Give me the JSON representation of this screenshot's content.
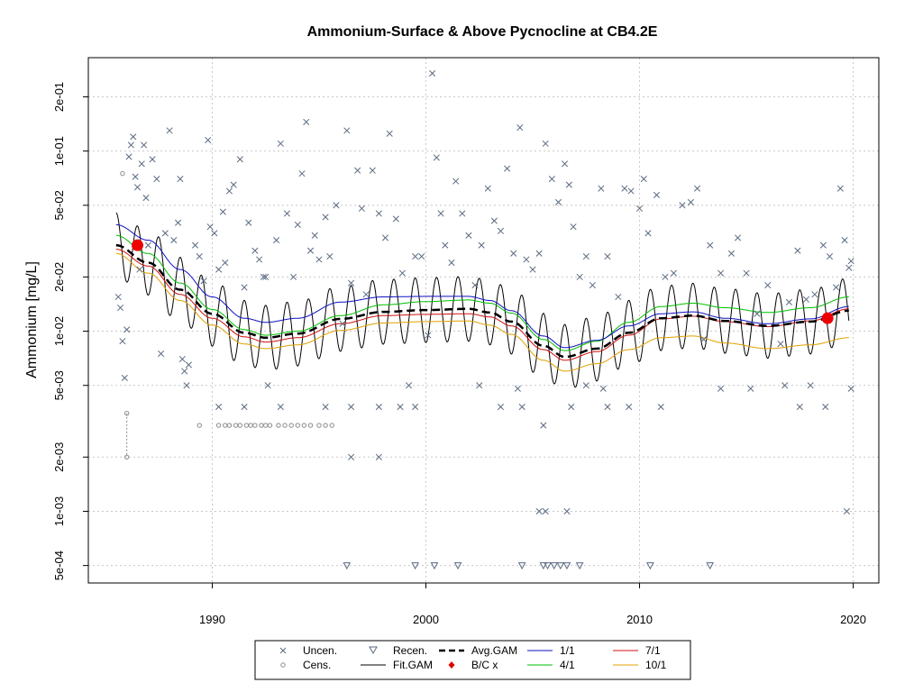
{
  "chart_data": {
    "type": "scatter",
    "title": "Ammonium-Surface & Above Pycnocline at CB4.2E",
    "xlabel": "",
    "ylabel": "Ammonium [mg/L]",
    "xlim": [
      1984.2,
      2021.2
    ],
    "ylim": [
      0.0004,
      0.33
    ],
    "log_y": true,
    "grid": true,
    "x_ticks": [
      1990,
      2000,
      2010,
      2020
    ],
    "x_tick_labels": [
      "1990",
      "2000",
      "2010",
      "2020"
    ],
    "y_ticks": [
      0.0005,
      0.001,
      0.002,
      0.005,
      0.01,
      0.02,
      0.05,
      0.1,
      0.2
    ],
    "y_tick_labels": [
      "5e-04",
      "1e-03",
      "2e-03",
      "5e-03",
      "1e-02",
      "2e-02",
      "5e-02",
      "1e-01",
      "2e-01"
    ],
    "legend": {
      "placement": "bottom",
      "entries": [
        {
          "label": "Uncen.",
          "symbol": "x",
          "color": "#5a6a80"
        },
        {
          "label": "Cens.",
          "symbol": "circle",
          "color": "#8a8a8a"
        },
        {
          "label": "Recen.",
          "symbol": "triangle-down",
          "color": "#5a6a80"
        },
        {
          "label": "Fit.GAM",
          "symbol": "line",
          "color": "#000000"
        },
        {
          "label": "Avg.GAM",
          "symbol": "dash",
          "color": "#000000"
        },
        {
          "label": "B/C x",
          "symbol": "dot",
          "color": "#e00000"
        },
        {
          "label": "1/1",
          "symbol": "line",
          "color": "#1010c0"
        },
        {
          "label": "4/1",
          "symbol": "line",
          "color": "#00c000"
        },
        {
          "label": "7/1",
          "symbol": "line",
          "color": "#d01010"
        },
        {
          "label": "10/1",
          "symbol": "line",
          "color": "#e0a000"
        }
      ]
    },
    "colors": {
      "uncen": "#5a6a80",
      "cens": "#8a8a8a",
      "fit": "#000000",
      "avg": "#000000",
      "bc": "#ee0000",
      "d11": "#1010c0",
      "d41": "#00c000",
      "d71": "#d01010",
      "d101": "#e0a000",
      "grid": "#c8c8c8"
    },
    "series": [
      {
        "name": "Avg.GAM",
        "x": [
          1985.5,
          1987,
          1988.5,
          1990,
          1991.5,
          1992.5,
          1994,
          1996,
          1998,
          2000,
          2002,
          2003,
          2004,
          2005.5,
          2006.5,
          2008,
          2009.5,
          2011,
          2012.5,
          2014,
          2016,
          2018,
          2019.8
        ],
        "y": [
          0.03,
          0.024,
          0.017,
          0.0125,
          0.0098,
          0.0092,
          0.0097,
          0.0117,
          0.0128,
          0.0131,
          0.0133,
          0.0127,
          0.0113,
          0.0083,
          0.0072,
          0.008,
          0.0098,
          0.0118,
          0.0122,
          0.0114,
          0.0107,
          0.0113,
          0.013
        ]
      },
      {
        "name": "1/1",
        "x": [
          1985.5,
          1987,
          1988.5,
          1990,
          1991.5,
          1992.5,
          1994,
          1996,
          1998,
          2000,
          2002,
          2003,
          2004,
          2005.5,
          2006.5,
          2008,
          2009.5,
          2011,
          2012.5,
          2014,
          2016,
          2018,
          2019.8
        ],
        "y": [
          0.039,
          0.032,
          0.022,
          0.0155,
          0.0118,
          0.0112,
          0.0118,
          0.0145,
          0.0155,
          0.0156,
          0.0156,
          0.0148,
          0.013,
          0.0094,
          0.0081,
          0.0089,
          0.0107,
          0.0125,
          0.0128,
          0.0118,
          0.011,
          0.0117,
          0.0137
        ]
      },
      {
        "name": "4/1",
        "x": [
          1985.5,
          1987,
          1988.5,
          1990,
          1991.5,
          1992.5,
          1994,
          1996,
          1998,
          2000,
          2002,
          2003,
          2004,
          2005.5,
          2006.5,
          2008,
          2009.5,
          2011,
          2012.5,
          2014,
          2016,
          2018,
          2019.8
        ],
        "y": [
          0.034,
          0.027,
          0.0185,
          0.0132,
          0.0102,
          0.0095,
          0.01,
          0.0122,
          0.014,
          0.0146,
          0.0149,
          0.0143,
          0.0126,
          0.009,
          0.0078,
          0.0088,
          0.0112,
          0.0137,
          0.0143,
          0.0135,
          0.0127,
          0.0135,
          0.0155
        ]
      },
      {
        "name": "7/1",
        "x": [
          1985.5,
          1987,
          1988.5,
          1990,
          1991.5,
          1992.5,
          1994,
          1996,
          1998,
          2000,
          2002,
          2003,
          2004,
          2005.5,
          2006.5,
          2008,
          2009.5,
          2011,
          2012.5,
          2014,
          2016,
          2018,
          2019.8
        ],
        "y": [
          0.0285,
          0.023,
          0.016,
          0.0118,
          0.0093,
          0.0087,
          0.0092,
          0.011,
          0.0122,
          0.0124,
          0.0125,
          0.012,
          0.0107,
          0.0079,
          0.0069,
          0.0077,
          0.0095,
          0.0117,
          0.0121,
          0.0113,
          0.0106,
          0.0114,
          0.0133
        ]
      },
      {
        "name": "10/1",
        "x": [
          1985.5,
          1987,
          1988.5,
          1990,
          1991.5,
          1992.5,
          1994,
          1996,
          1998,
          2000,
          2002,
          2003,
          2004,
          2005.5,
          2006.5,
          2008,
          2009.5,
          2011,
          2012.5,
          2014,
          2016,
          2018,
          2019.8
        ],
        "y": [
          0.027,
          0.021,
          0.0148,
          0.0108,
          0.0085,
          0.008,
          0.0084,
          0.0101,
          0.0111,
          0.0113,
          0.0114,
          0.0108,
          0.0096,
          0.0069,
          0.006,
          0.0066,
          0.0079,
          0.0092,
          0.0094,
          0.0086,
          0.008,
          0.0084,
          0.0092
        ]
      }
    ],
    "bc_points": [
      {
        "x": 1986.5,
        "y": 0.03
      },
      {
        "x": 2018.8,
        "y": 0.0118
      }
    ],
    "uncensored_points": [
      [
        1985.6,
        0.0155
      ],
      [
        1985.7,
        0.0135
      ],
      [
        1985.8,
        0.0088
      ],
      [
        1985.9,
        0.0055
      ],
      [
        1986.0,
        0.0102
      ],
      [
        1986.1,
        0.093
      ],
      [
        1986.2,
        0.108
      ],
      [
        1986.3,
        0.12
      ],
      [
        1986.4,
        0.072
      ],
      [
        1986.5,
        0.063
      ],
      [
        1986.6,
        0.022
      ],
      [
        1986.7,
        0.085
      ],
      [
        1986.8,
        0.108
      ],
      [
        1986.9,
        0.055
      ],
      [
        1987.0,
        0.03
      ],
      [
        1987.2,
        0.09
      ],
      [
        1987.4,
        0.07
      ],
      [
        1987.6,
        0.0075
      ],
      [
        1987.8,
        0.035
      ],
      [
        1988.0,
        0.13
      ],
      [
        1988.2,
        0.032
      ],
      [
        1988.4,
        0.04
      ],
      [
        1988.5,
        0.07
      ],
      [
        1988.6,
        0.007
      ],
      [
        1988.7,
        0.006
      ],
      [
        1988.8,
        0.005
      ],
      [
        1988.9,
        0.0065
      ],
      [
        1989.2,
        0.03
      ],
      [
        1989.4,
        0.026
      ],
      [
        1989.6,
        0.019
      ],
      [
        1989.8,
        0.115
      ],
      [
        1989.9,
        0.038
      ],
      [
        1990.1,
        0.035
      ],
      [
        1990.3,
        0.022
      ],
      [
        1990.5,
        0.046
      ],
      [
        1990.6,
        0.024
      ],
      [
        1990.8,
        0.06
      ],
      [
        1991.0,
        0.065
      ],
      [
        1991.3,
        0.09
      ],
      [
        1991.5,
        0.0175
      ],
      [
        1991.7,
        0.04
      ],
      [
        1992.0,
        0.028
      ],
      [
        1992.2,
        0.025
      ],
      [
        1992.4,
        0.02
      ],
      [
        1992.5,
        0.02
      ],
      [
        1992.6,
        0.005
      ],
      [
        1993.0,
        0.032
      ],
      [
        1993.2,
        0.11
      ],
      [
        1993.5,
        0.045
      ],
      [
        1993.8,
        0.02
      ],
      [
        1994.0,
        0.039
      ],
      [
        1994.2,
        0.075
      ],
      [
        1994.4,
        0.145
      ],
      [
        1994.6,
        0.028
      ],
      [
        1994.8,
        0.034
      ],
      [
        1995.0,
        0.025
      ],
      [
        1995.3,
        0.043
      ],
      [
        1995.5,
        0.026
      ],
      [
        1995.8,
        0.05
      ],
      [
        1996.1,
        0.011
      ],
      [
        1996.3,
        0.13
      ],
      [
        1996.5,
        0.0185
      ],
      [
        1996.8,
        0.078
      ],
      [
        1997.0,
        0.048
      ],
      [
        1997.2,
        0.016
      ],
      [
        1997.5,
        0.078
      ],
      [
        1997.8,
        0.045
      ],
      [
        1998.1,
        0.033
      ],
      [
        1998.3,
        0.125
      ],
      [
        1998.6,
        0.042
      ],
      [
        1998.9,
        0.021
      ],
      [
        1999.2,
        0.005
      ],
      [
        1999.5,
        0.026
      ],
      [
        1999.8,
        0.026
      ],
      [
        2000.1,
        0.0095
      ],
      [
        2000.3,
        0.27
      ],
      [
        2000.5,
        0.092
      ],
      [
        2000.7,
        0.045
      ],
      [
        2000.9,
        0.03
      ],
      [
        2001.2,
        0.024
      ],
      [
        2001.4,
        0.068
      ],
      [
        2001.7,
        0.045
      ],
      [
        2002.0,
        0.034
      ],
      [
        2002.3,
        0.018
      ],
      [
        2002.6,
        0.03
      ],
      [
        2002.9,
        0.062
      ],
      [
        2003.2,
        0.041
      ],
      [
        2003.5,
        0.036
      ],
      [
        2003.8,
        0.08
      ],
      [
        2004.1,
        0.027
      ],
      [
        2004.4,
        0.135
      ],
      [
        2004.7,
        0.025
      ],
      [
        2005.0,
        0.022
      ],
      [
        2005.3,
        0.027
      ],
      [
        2005.6,
        0.11
      ],
      [
        2005.9,
        0.07
      ],
      [
        2006.2,
        0.052
      ],
      [
        2006.5,
        0.085
      ],
      [
        2006.7,
        0.065
      ],
      [
        2006.9,
        0.038
      ],
      [
        2007.2,
        0.02
      ],
      [
        2007.5,
        0.026
      ],
      [
        2007.8,
        0.018
      ],
      [
        2008.2,
        0.062
      ],
      [
        2008.5,
        0.026
      ],
      [
        2009.0,
        0.0155
      ],
      [
        2009.3,
        0.062
      ],
      [
        2009.6,
        0.06
      ],
      [
        2010.0,
        0.048
      ],
      [
        2010.2,
        0.07
      ],
      [
        2010.4,
        0.035
      ],
      [
        2010.8,
        0.057
      ],
      [
        2011.2,
        0.02
      ],
      [
        2011.6,
        0.021
      ],
      [
        2012.0,
        0.05
      ],
      [
        2012.4,
        0.052
      ],
      [
        2012.7,
        0.062
      ],
      [
        2013.0,
        0.009
      ],
      [
        2013.3,
        0.03
      ],
      [
        2013.8,
        0.021
      ],
      [
        2014.3,
        0.027
      ],
      [
        2014.6,
        0.033
      ],
      [
        2015.0,
        0.021
      ],
      [
        2015.5,
        0.0125
      ],
      [
        2016.0,
        0.018
      ],
      [
        2016.6,
        0.0085
      ],
      [
        2017.0,
        0.0145
      ],
      [
        2017.4,
        0.028
      ],
      [
        2017.8,
        0.015
      ],
      [
        2018.2,
        0.016
      ],
      [
        2018.6,
        0.03
      ],
      [
        2018.9,
        0.026
      ],
      [
        2019.2,
        0.0175
      ],
      [
        2019.4,
        0.062
      ],
      [
        2019.6,
        0.032
      ],
      [
        2019.8,
        0.0225
      ],
      [
        2019.9,
        0.0245
      ],
      [
        1990.3,
        0.0038
      ],
      [
        1991.5,
        0.0038
      ],
      [
        1993.2,
        0.0038
      ],
      [
        1995.3,
        0.0038
      ],
      [
        1996.5,
        0.0038
      ],
      [
        1997.8,
        0.0038
      ],
      [
        1998.8,
        0.0038
      ],
      [
        1999.5,
        0.0038
      ],
      [
        2003.5,
        0.0038
      ],
      [
        2004.5,
        0.0038
      ],
      [
        2006.8,
        0.0038
      ],
      [
        2008.5,
        0.0038
      ],
      [
        2009.5,
        0.0038
      ],
      [
        2011.0,
        0.0038
      ],
      [
        2017.5,
        0.0038
      ],
      [
        2018.7,
        0.0038
      ],
      [
        1996.5,
        0.002
      ],
      [
        1997.8,
        0.002
      ],
      [
        2005.3,
        0.001
      ],
      [
        2005.6,
        0.001
      ],
      [
        2006.6,
        0.001
      ],
      [
        2019.7,
        0.001
      ],
      [
        2005.5,
        0.003
      ],
      [
        2002.5,
        0.005
      ],
      [
        2004.3,
        0.0048
      ],
      [
        2007.5,
        0.005
      ],
      [
        2008.3,
        0.0048
      ],
      [
        2013.8,
        0.0048
      ],
      [
        2015.2,
        0.0048
      ],
      [
        2016.8,
        0.005
      ],
      [
        2018.0,
        0.005
      ],
      [
        2019.9,
        0.0048
      ]
    ],
    "censored_points": [
      [
        1985.8,
        0.075
      ],
      [
        1986.0,
        0.0035
      ],
      [
        1986.0,
        0.002
      ],
      [
        1989.4,
        0.003
      ],
      [
        1990.3,
        0.003
      ],
      [
        1990.6,
        0.003
      ],
      [
        1990.8,
        0.003
      ],
      [
        1991.1,
        0.003
      ],
      [
        1991.3,
        0.003
      ],
      [
        1991.6,
        0.003
      ],
      [
        1991.8,
        0.003
      ],
      [
        1992.0,
        0.003
      ],
      [
        1992.3,
        0.003
      ],
      [
        1992.5,
        0.003
      ],
      [
        1992.7,
        0.003
      ],
      [
        1993.1,
        0.003
      ],
      [
        1993.4,
        0.003
      ],
      [
        1993.7,
        0.003
      ],
      [
        1994.0,
        0.003
      ],
      [
        1994.3,
        0.003
      ],
      [
        1994.6,
        0.003
      ],
      [
        1995.0,
        0.003
      ],
      [
        1995.3,
        0.003
      ],
      [
        1995.6,
        0.003
      ]
    ],
    "recensored_points": [
      [
        1996.3,
        0.0005
      ],
      [
        1999.5,
        0.0005
      ],
      [
        2000.4,
        0.0005
      ],
      [
        2001.5,
        0.0005
      ],
      [
        2004.5,
        0.0005
      ],
      [
        2005.5,
        0.0005
      ],
      [
        2005.7,
        0.0005
      ],
      [
        2006.0,
        0.0005
      ],
      [
        2006.3,
        0.0005
      ],
      [
        2006.6,
        0.0005
      ],
      [
        2007.2,
        0.0005
      ],
      [
        2010.5,
        0.0005
      ],
      [
        2013.3,
        0.0005
      ]
    ]
  }
}
